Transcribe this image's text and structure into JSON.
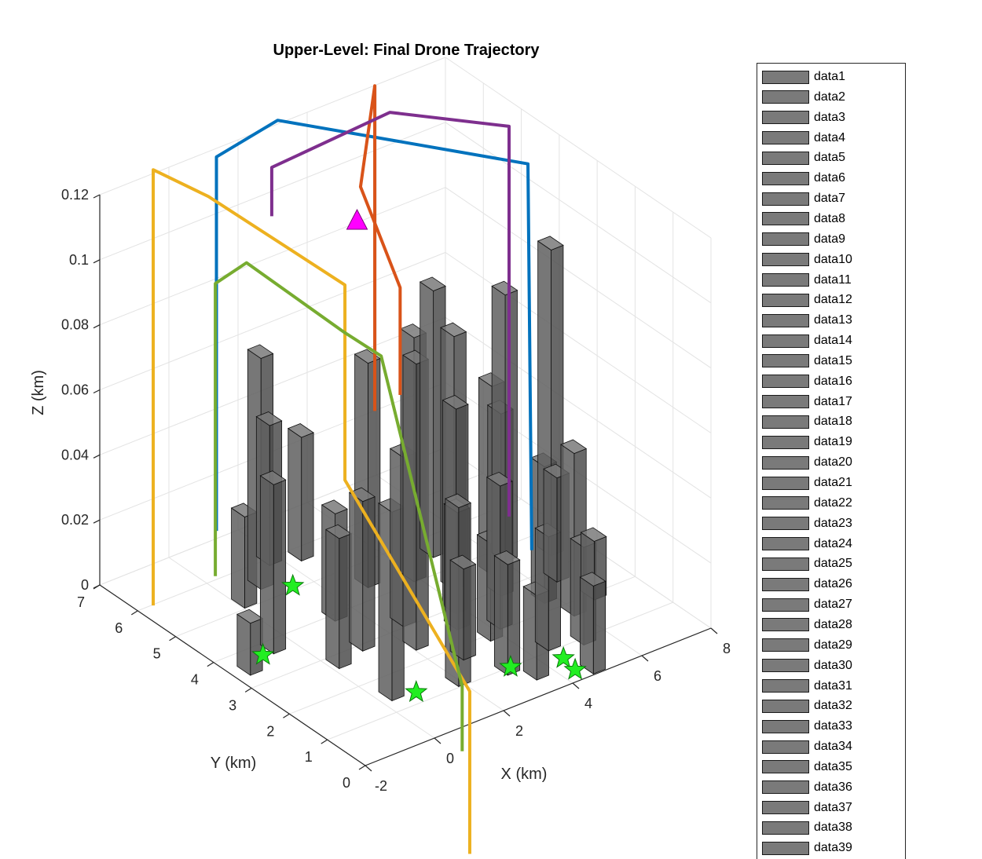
{
  "chart_data": {
    "type": "3d-bar-line",
    "title": "Upper-Level: Final Drone Trajectory",
    "xlabel": "X (km)",
    "ylabel": "Y (km)",
    "zlabel": "Z (km)",
    "xlim": [
      -2,
      8
    ],
    "ylim": [
      0,
      7
    ],
    "zlim": [
      0,
      0.12
    ],
    "x_ticks": [
      "-2",
      "0",
      "2",
      "4",
      "6",
      "8"
    ],
    "y_ticks": [
      "0",
      "1",
      "2",
      "3",
      "4",
      "5",
      "6",
      "7"
    ],
    "z_ticks": [
      "0",
      "0.02",
      "0.04",
      "0.06",
      "0.08",
      "0.1",
      "0.12"
    ],
    "grid": true,
    "legend_position": "right (outside)",
    "legend_entries": [
      "data1",
      "data2",
      "data3",
      "data4",
      "data5",
      "data6",
      "data7",
      "data8",
      "data9",
      "data10",
      "data11",
      "data12",
      "data13",
      "data14",
      "data15",
      "data16",
      "data17",
      "data18",
      "data19",
      "data20",
      "data21",
      "data22",
      "data23",
      "data24",
      "data25",
      "data26",
      "data27",
      "data28",
      "data29",
      "data30",
      "data31",
      "data32",
      "data33",
      "data34",
      "data35",
      "data36",
      "data37",
      "data38",
      "data39"
    ],
    "colors": {
      "building": "#5a5a5a",
      "start_marker": "#22ee22",
      "goal_marker": "#ff00ff",
      "trajectories": [
        "#0072BD",
        "#D95319",
        "#EDB120",
        "#7E2F8E",
        "#77AC30"
      ]
    },
    "buildings": [
      {
        "x": -1.5,
        "y": 3.5,
        "h": 0.016
      },
      {
        "x": -0.5,
        "y": 3.8,
        "h": 0.052
      },
      {
        "x": 0.2,
        "y": 5.2,
        "h": 0.028
      },
      {
        "x": 0.3,
        "y": 2.8,
        "h": 0.04
      },
      {
        "x": 1.0,
        "y": 5.5,
        "h": 0.071
      },
      {
        "x": 0.4,
        "y": 1.5,
        "h": 0.058
      },
      {
        "x": 1.8,
        "y": 6.0,
        "h": 0.043
      },
      {
        "x": 1.5,
        "y": 4.0,
        "h": 0.033
      },
      {
        "x": 2.5,
        "y": 5.8,
        "h": 0.038
      },
      {
        "x": 1.2,
        "y": 3.0,
        "h": 0.046
      },
      {
        "x": 2.0,
        "y": 1.2,
        "h": 0.055
      },
      {
        "x": 2.2,
        "y": 2.5,
        "h": 0.088
      },
      {
        "x": 3.0,
        "y": 4.5,
        "h": 0.069
      },
      {
        "x": 2.6,
        "y": 3.2,
        "h": 0.052
      },
      {
        "x": 3.5,
        "y": 2.6,
        "h": 0.036
      },
      {
        "x": 4.0,
        "y": 4.2,
        "h": 0.075
      },
      {
        "x": 3.2,
        "y": 1.0,
        "h": 0.034
      },
      {
        "x": 3.8,
        "y": 2.0,
        "h": 0.03
      },
      {
        "x": 4.5,
        "y": 3.6,
        "h": 0.078
      },
      {
        "x": 5.0,
        "y": 4.6,
        "h": 0.082
      },
      {
        "x": 4.3,
        "y": 2.2,
        "h": 0.044
      },
      {
        "x": 3.6,
        "y": 0.6,
        "h": 0.026
      },
      {
        "x": 4.6,
        "y": 1.2,
        "h": 0.035
      },
      {
        "x": 5.2,
        "y": 3.0,
        "h": 0.056
      },
      {
        "x": 6.2,
        "y": 3.8,
        "h": 0.082
      },
      {
        "x": 5.8,
        "y": 2.4,
        "h": 0.042
      },
      {
        "x": 6.6,
        "y": 2.8,
        "h": 0.032
      },
      {
        "x": 7.2,
        "y": 3.5,
        "h": 0.094
      },
      {
        "x": 5.4,
        "y": 1.0,
        "h": 0.03
      },
      {
        "x": 6.0,
        "y": 1.8,
        "h": 0.05
      },
      {
        "x": 4.8,
        "y": 0.2,
        "h": 0.027
      },
      {
        "x": 3.9,
        "y": 3.0,
        "h": 0.063
      },
      {
        "x": 5.6,
        "y": 3.6,
        "h": 0.058
      },
      {
        "x": 2.8,
        "y": 1.8,
        "h": 0.028
      },
      {
        "x": 6.8,
        "y": 2.0,
        "h": 0.018
      }
    ],
    "starts": [
      {
        "x": -0.9,
        "y": 3.7,
        "z": 0
      },
      {
        "x": 0.9,
        "y": 1.3,
        "z": 0
      },
      {
        "x": 3.3,
        "y": 1.0,
        "z": 0
      },
      {
        "x": 4.5,
        "y": 0.7,
        "z": 0
      },
      {
        "x": 4.4,
        "y": 0.3,
        "z": 0
      },
      {
        "x": 1.5,
        "y": 5.1,
        "z": 0
      }
    ],
    "goal": {
      "x": 2.7,
      "y": 4.5,
      "z": 0.112
    },
    "series": [
      {
        "color": "#0072BD",
        "points": [
          [
            -0.6,
            5.2,
            0.025
          ],
          [
            -0.6,
            5.2,
            0.14
          ],
          [
            1.5,
            5.5,
            0.14
          ],
          [
            4.9,
            2.0,
            0.14
          ],
          [
            4.9,
            1.9,
            0.022
          ]
        ]
      },
      {
        "color": "#D95319",
        "points": [
          [
            2.3,
            3.0,
            0.072
          ],
          [
            2.3,
            3.0,
            0.105
          ],
          [
            2.8,
            4.5,
            0.122
          ],
          [
            4.2,
            5.4,
            0.14
          ],
          [
            4.2,
            5.4,
            0.04
          ]
        ]
      },
      {
        "color": "#EDB120",
        "points": [
          [
            -2.1,
            5.5,
            0.006
          ],
          [
            -2.1,
            5.5,
            0.14
          ],
          [
            -0.5,
            5.5,
            0.125
          ],
          [
            1.8,
            4.0,
            0.1
          ],
          [
            1.8,
            4.0,
            0.04
          ],
          [
            1.9,
            0.8,
            0.0
          ],
          [
            1.9,
            0.8,
            -0.05
          ]
        ]
      },
      {
        "color": "#7E2F8E",
        "points": [
          [
            6.0,
            3.5,
            0.015
          ],
          [
            6.0,
            3.5,
            0.135
          ],
          [
            4.2,
            5.0,
            0.135
          ],
          [
            1.0,
            5.2,
            0.13
          ],
          [
            1.0,
            5.2,
            0.115
          ]
        ]
      },
      {
        "color": "#77AC30",
        "points": [
          [
            -1.4,
            4.5,
            0.02
          ],
          [
            -1.4,
            4.5,
            0.11
          ],
          [
            0.6,
            5.5,
            0.1
          ],
          [
            2.0,
            4.2,
            0.083
          ],
          [
            2.3,
            3.5,
            0.08
          ],
          [
            1.9,
            1.0,
            0.0
          ],
          [
            1.9,
            1.0,
            -0.02
          ]
        ]
      }
    ]
  }
}
